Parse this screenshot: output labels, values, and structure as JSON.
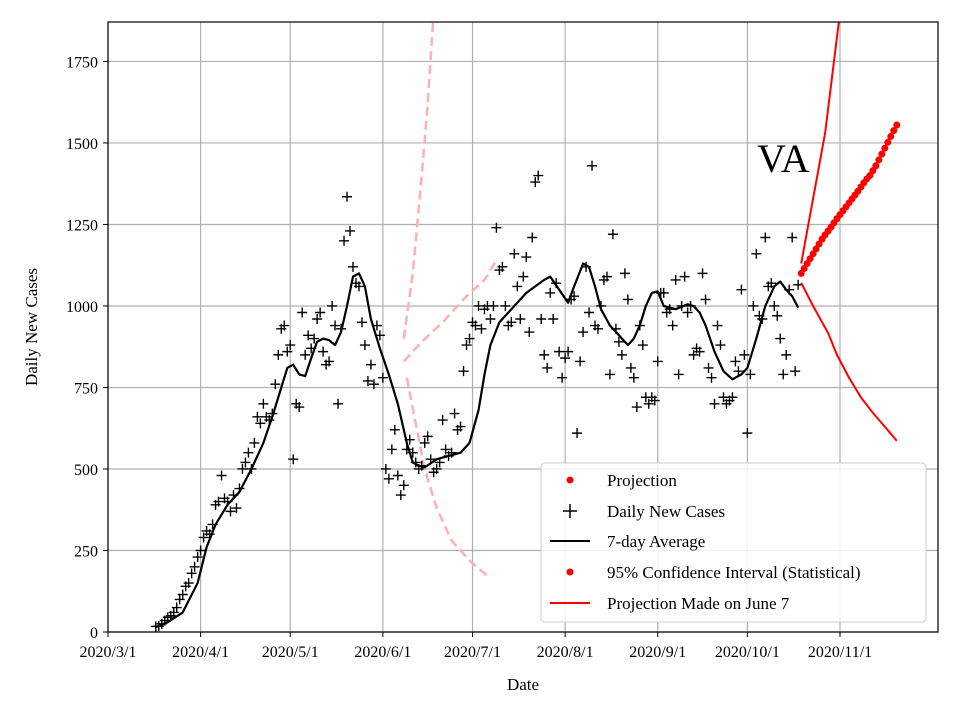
{
  "chart_data": {
    "type": "line",
    "annotation": "VA",
    "xlabel": "Date",
    "ylabel": "Daily New Cases",
    "x_unit": "days since 2020/3/1",
    "xlim": [
      0,
      277.8
    ],
    "ylim": [
      0,
      1871
    ],
    "grid": true,
    "legend_placement": "lower-right",
    "x_ticks": [
      {
        "day": 0,
        "label": "2020/3/1"
      },
      {
        "day": 31,
        "label": "2020/4/1"
      },
      {
        "day": 61,
        "label": "2020/5/1"
      },
      {
        "day": 92,
        "label": "2020/6/1"
      },
      {
        "day": 122,
        "label": "2020/7/1"
      },
      {
        "day": 153,
        "label": "2020/8/1"
      },
      {
        "day": 184,
        "label": "2020/9/1"
      },
      {
        "day": 214,
        "label": "2020/10/1"
      },
      {
        "day": 245,
        "label": "2020/11/1"
      }
    ],
    "y_ticks": [
      0,
      250,
      500,
      750,
      1000,
      1250,
      1500,
      1750
    ],
    "legend": [
      "Projection",
      "Daily New Cases",
      "7-day Average",
      "95% Confidence Interval (Statistical)",
      "Projection Made on June 7"
    ],
    "colors": {
      "projection": "#ff0000",
      "daily": "#000000",
      "average": "#000000",
      "ci": "#ff0000",
      "june7": "#ffb0b0",
      "grid": "#b0b0b0"
    },
    "daily_new_cases": {
      "start_day": 16,
      "values": [
        17,
        18,
        25,
        35,
        45,
        50,
        60,
        75,
        100,
        115,
        140,
        150,
        180,
        200,
        230,
        250,
        290,
        310,
        300,
        330,
        390,
        400,
        480,
        410,
        400,
        370,
        420,
        380,
        440,
        500,
        520,
        550,
        500,
        580,
        660,
        640,
        700,
        660,
        650,
        670,
        760,
        850,
        930,
        940,
        860,
        880,
        530,
        700,
        690,
        980,
        850,
        910,
        870,
        900,
        960,
        980,
        860,
        820,
        830,
        1000,
        940,
        700,
        930,
        1200,
        1335,
        1230,
        1120,
        1070,
        1060,
        950,
        880,
        770,
        820,
        760,
        940,
        910,
        780,
        500,
        470,
        560,
        620,
        480,
        420,
        450,
        560,
        590,
        550,
        520,
        500,
        510,
        580,
        600,
        530,
        490,
        500,
        520,
        650,
        560,
        540,
        550,
        670,
        620,
        630,
        800,
        880,
        900,
        950,
        940,
        1000,
        930,
        990,
        1000,
        960,
        1000,
        1240,
        1110,
        1120,
        1000,
        940,
        950,
        1160,
        1060,
        960,
        1090,
        1150,
        920,
        1210,
        1380,
        1400,
        960,
        850,
        810,
        1040,
        960,
        1070,
        860,
        780,
        840,
        860,
        1020,
        1030,
        610,
        830,
        920,
        1120,
        980,
        1430,
        940,
        930,
        1000,
        1080,
        1090,
        790,
        1220,
        930,
        890,
        850,
        1100,
        1020,
        810,
        780,
        690,
        940,
        880,
        720,
        700,
        720,
        710,
        830,
        1040,
        1040,
        980,
        990,
        940,
        1080,
        790,
        1000,
        1090,
        980,
        1000,
        850,
        870,
        860,
        1100,
        1020,
        810,
        780,
        700,
        940,
        880,
        720,
        700,
        710,
        720,
        830,
        800,
        1050,
        850,
        610,
        790,
        1000,
        1160,
        970,
        960,
        1210,
        1060,
        1070,
        1000,
        970,
        900,
        790,
        850,
        1050,
        1210,
        800,
        1065
      ]
    },
    "seven_day_average": [
      [
        16,
        15
      ],
      [
        20,
        30
      ],
      [
        25,
        60
      ],
      [
        30,
        150
      ],
      [
        33,
        260
      ],
      [
        36,
        330
      ],
      [
        40,
        390
      ],
      [
        44,
        430
      ],
      [
        48,
        500
      ],
      [
        52,
        580
      ],
      [
        55,
        660
      ],
      [
        58,
        750
      ],
      [
        60,
        810
      ],
      [
        62,
        820
      ],
      [
        64,
        790
      ],
      [
        66,
        785
      ],
      [
        68,
        840
      ],
      [
        70,
        890
      ],
      [
        72,
        900
      ],
      [
        74,
        895
      ],
      [
        76,
        880
      ],
      [
        78,
        920
      ],
      [
        80,
        1000
      ],
      [
        82,
        1090
      ],
      [
        84,
        1100
      ],
      [
        86,
        1060
      ],
      [
        88,
        960
      ],
      [
        91,
        870
      ],
      [
        94,
        790
      ],
      [
        97,
        700
      ],
      [
        100,
        580
      ],
      [
        102,
        520
      ],
      [
        104,
        510
      ],
      [
        106,
        505
      ],
      [
        110,
        530
      ],
      [
        114,
        540
      ],
      [
        118,
        550
      ],
      [
        121,
        580
      ],
      [
        124,
        680
      ],
      [
        126,
        790
      ],
      [
        128,
        880
      ],
      [
        131,
        950
      ],
      [
        134,
        980
      ],
      [
        137,
        1010
      ],
      [
        140,
        1040
      ],
      [
        143,
        1060
      ],
      [
        146,
        1080
      ],
      [
        148,
        1090
      ],
      [
        151,
        1050
      ],
      [
        154,
        1010
      ],
      [
        156,
        1060
      ],
      [
        159,
        1130
      ],
      [
        161,
        1120
      ],
      [
        163,
        1060
      ],
      [
        165,
        990
      ],
      [
        168,
        940
      ],
      [
        171,
        910
      ],
      [
        174,
        880
      ],
      [
        176,
        900
      ],
      [
        178,
        940
      ],
      [
        180,
        1000
      ],
      [
        182,
        1040
      ],
      [
        184,
        1045
      ],
      [
        186,
        1000
      ],
      [
        190,
        990
      ],
      [
        194,
        1005
      ],
      [
        196,
        1000
      ],
      [
        198,
        980
      ],
      [
        200,
        940
      ],
      [
        203,
        860
      ],
      [
        206,
        800
      ],
      [
        209,
        775
      ],
      [
        212,
        790
      ],
      [
        214,
        810
      ],
      [
        217,
        900
      ],
      [
        220,
        1000
      ],
      [
        223,
        1060
      ],
      [
        225,
        1075
      ],
      [
        227,
        1050
      ],
      [
        229,
        1030
      ],
      [
        231,
        995
      ]
    ],
    "projection": {
      "start_day": 232,
      "values": [
        1100,
        1115,
        1130,
        1145,
        1160,
        1175,
        1190,
        1205,
        1218,
        1230,
        1242,
        1255,
        1268,
        1280,
        1292,
        1304,
        1316,
        1328,
        1340,
        1352,
        1365,
        1378,
        1390,
        1400,
        1415,
        1430,
        1448,
        1466,
        1484,
        1502,
        1520,
        1538,
        1555
      ]
    },
    "confidence_interval": {
      "upper": [
        [
          232,
          1130
        ],
        [
          236,
          1330
        ],
        [
          240,
          1530
        ],
        [
          245,
          1900
        ]
      ],
      "lower": [
        [
          232,
          1071
        ],
        [
          236,
          1000
        ],
        [
          241,
          917
        ],
        [
          244,
          850
        ],
        [
          248,
          780
        ],
        [
          252,
          720
        ],
        [
          256,
          672
        ],
        [
          260,
          630
        ],
        [
          264,
          586
        ]
      ]
    },
    "projection_june7": {
      "upper": [
        [
          99,
          900
        ],
        [
          102,
          1100
        ],
        [
          105,
          1400
        ],
        [
          107,
          1620
        ],
        [
          109,
          1900
        ]
      ],
      "middle": [
        [
          99,
          830
        ],
        [
          105,
          890
        ],
        [
          112,
          950
        ],
        [
          120,
          1030
        ],
        [
          126,
          1080
        ],
        [
          130,
          1140
        ]
      ],
      "lower": [
        [
          100,
          780
        ],
        [
          103,
          640
        ],
        [
          106,
          500
        ],
        [
          110,
          380
        ],
        [
          115,
          280
        ],
        [
          122,
          210
        ],
        [
          128,
          165
        ]
      ]
    }
  }
}
